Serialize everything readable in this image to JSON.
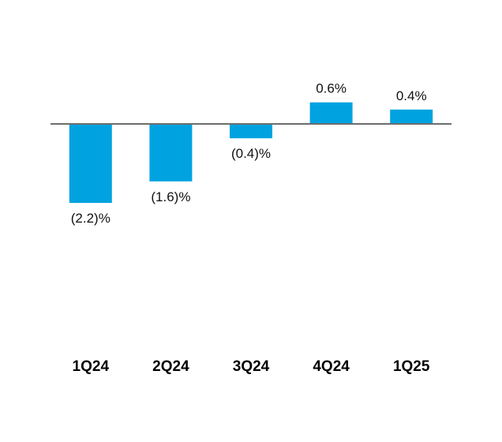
{
  "chart_data": {
    "type": "bar",
    "categories": [
      "1Q24",
      "2Q24",
      "3Q24",
      "4Q24",
      "1Q25"
    ],
    "values": [
      -2.2,
      -1.6,
      -0.4,
      0.6,
      0.4
    ],
    "data_labels": [
      "(2.2)%",
      "(1.6)%",
      "(0.4)%",
      "0.6%",
      "0.4%"
    ],
    "unit": "%",
    "bar_color": "#00a3e0",
    "baseline_color": "#6d6d6d",
    "grid": false,
    "legend": "none"
  }
}
